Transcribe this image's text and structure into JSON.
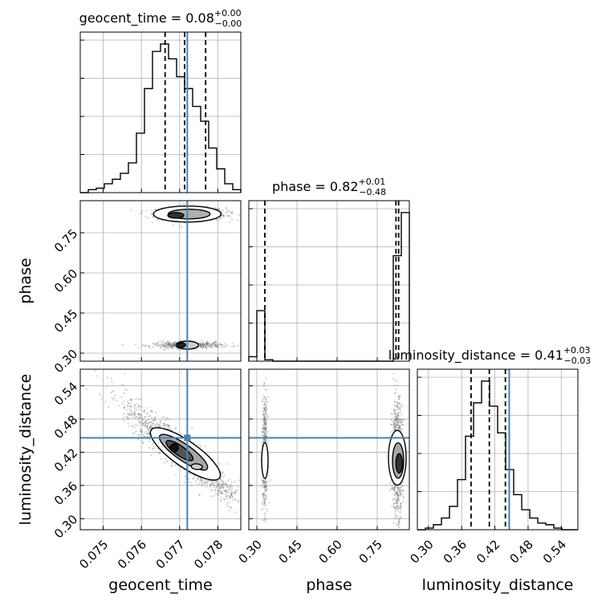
{
  "chart_data": {
    "type": "corner",
    "parameters": [
      "geocent_time",
      "phase",
      "luminosity_distance"
    ],
    "truths": {
      "geocent_time": 0.0772,
      "phase": null,
      "luminosity_distance": 0.446
    },
    "titles": {
      "geocent_time": {
        "name": "geocent_time",
        "median": "0.08",
        "plus": "+0.00",
        "minus": "−0.00"
      },
      "phase": {
        "name": "phase",
        "median": "0.82",
        "plus": "+0.01",
        "minus": "−0.48"
      },
      "luminosity_distance": {
        "name": "luminosity_distance",
        "median": "0.41",
        "plus": "+0.03",
        "minus": "−0.03"
      }
    },
    "axes": {
      "geocent_time": {
        "range": [
          0.0744,
          0.0786
        ],
        "ticks": [
          0.075,
          0.076,
          0.077,
          0.078
        ],
        "tick_labels": [
          "0.075",
          "0.076",
          "0.077",
          "0.078"
        ],
        "label": "geocent_time"
      },
      "phase": {
        "range": [
          0.27,
          0.87
        ],
        "ticks": [
          0.3,
          0.45,
          0.6,
          0.75
        ],
        "tick_labels": [
          "0.30",
          "0.45",
          "0.60",
          "0.75"
        ],
        "label": "phase"
      },
      "luminosity_distance": {
        "range": [
          0.28,
          0.57
        ],
        "ticks": [
          0.3,
          0.36,
          0.42,
          0.48,
          0.54
        ],
        "tick_labels": [
          "0.30",
          "0.36",
          "0.42",
          "0.48",
          "0.54"
        ],
        "label": "luminosity_distance"
      }
    },
    "histograms": {
      "geocent_time": {
        "edges": [
          0.0744,
          0.07461,
          0.07482,
          0.07503,
          0.07524,
          0.07545,
          0.07566,
          0.07587,
          0.07608,
          0.07629,
          0.0765,
          0.07671,
          0.07692,
          0.07713,
          0.07734,
          0.07755,
          0.07776,
          0.07797,
          0.07818,
          0.07839,
          0.0786
        ],
        "counts": [
          0,
          2,
          3,
          6,
          9,
          13,
          20,
          40,
          70,
          95,
          100,
          90,
          78,
          70,
          58,
          48,
          30,
          16,
          6,
          2
        ],
        "quantiles": [
          0.07662,
          0.07713,
          0.07768
        ]
      },
      "phase": {
        "edges": [
          0.27,
          0.3,
          0.33,
          0.36,
          0.39,
          0.42,
          0.45,
          0.48,
          0.51,
          0.54,
          0.57,
          0.6,
          0.63,
          0.66,
          0.69,
          0.72,
          0.75,
          0.78,
          0.81,
          0.84,
          0.87
        ],
        "counts": [
          3,
          34,
          1,
          0,
          0,
          0,
          0,
          0,
          0,
          0,
          0,
          0,
          0,
          0,
          0,
          0,
          0,
          0,
          71,
          100
        ],
        "quantiles": [
          0.33,
          0.82,
          0.83
        ]
      },
      "luminosity_distance": {
        "edges": [
          0.28,
          0.2945,
          0.309,
          0.3235,
          0.338,
          0.3525,
          0.367,
          0.3815,
          0.396,
          0.4105,
          0.425,
          0.4395,
          0.454,
          0.4685,
          0.483,
          0.4975,
          0.512,
          0.5265,
          0.541,
          0.5555,
          0.57
        ],
        "counts": [
          0,
          1,
          3,
          7,
          14,
          30,
          56,
          76,
          89,
          74,
          58,
          36,
          21,
          12,
          7,
          4,
          3,
          1,
          0,
          0
        ],
        "quantiles": [
          0.377,
          0.41,
          0.439
        ]
      }
    },
    "grid": true,
    "colors": {
      "hist": "#000000",
      "truth": "#4682b4",
      "dashes": "#000000",
      "scatter": "#666666",
      "grid": "#b0b0b0"
    }
  }
}
